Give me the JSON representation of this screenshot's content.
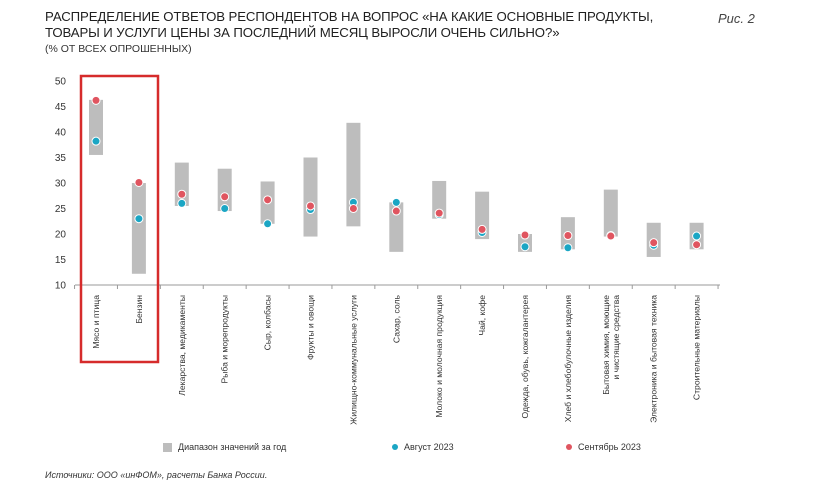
{
  "header": {
    "title": "РАСПРЕДЕЛЕНИЕ ОТВЕТОВ РЕСПОНДЕНТОВ НА ВОПРОС «НА КАКИЕ ОСНОВНЫЕ ПРОДУКТЫ, ТОВАРЫ И УСЛУГИ ЦЕНЫ ЗА ПОСЛЕДНИЙ МЕСЯЦ ВЫРОСЛИ ОЧЕНЬ СИЛЬНО?»",
    "subtitle": "(% ОТ ВСЕХ ОПРОШЕННЫХ)",
    "figure_label": "Рис. 2"
  },
  "source": "Источники: ООО «инФОМ», расчеты Банка России.",
  "colors": {
    "range": "#bdbdbd",
    "august": "#1ba6c4",
    "september": "#e05560",
    "highlight": "#d62b2b"
  },
  "chart_data": {
    "type": "range-dot",
    "title": "РАСПРЕДЕЛЕНИЕ ОТВЕТОВ РЕСПОНДЕНТОВ НА ВОПРОС «НА КАКИЕ ОСНОВНЫЕ ПРОДУКТЫ, ТОВАРЫ И УСЛУГИ ЦЕНЫ ЗА ПОСЛЕДНИЙ МЕСЯЦ ВЫРОСЛИ ОЧЕНЬ СИЛЬНО?»",
    "ylabel": "% от всех опрошенных",
    "ylim": [
      10,
      50
    ],
    "yticks": [
      10,
      15,
      20,
      25,
      30,
      35,
      40,
      45,
      50
    ],
    "categories": [
      "Мясо и птица",
      "Бензин",
      "Лекарства, медикаменты",
      "Рыба и морепродукты",
      "Сыр, колбасы",
      "Фрукты и овощи",
      "Жилищно-коммунальные услуги",
      "Сахар, соль",
      "Молоко и молочная продукция",
      "Чай, кофе",
      "Одежда, обувь, кожгалантерея",
      "Хлеб и хлебобулочные изделия",
      "Бытовая химия, моющие и чистящие средства",
      "Электроника и бытовая техника",
      "Строительные материалы"
    ],
    "range_min": [
      35.5,
      12.2,
      25.5,
      24.5,
      22.0,
      19.5,
      21.5,
      16.5,
      23.0,
      19.0,
      16.5,
      17.0,
      19.5,
      15.5,
      17.0
    ],
    "range_max": [
      46.3,
      30.0,
      34.0,
      32.8,
      30.3,
      35.0,
      41.8,
      26.2,
      30.4,
      28.3,
      20.0,
      23.3,
      28.7,
      22.2,
      22.2
    ],
    "series": [
      {
        "name": "Август 2023",
        "values": [
          38.2,
          23.0,
          26.0,
          25.0,
          22.0,
          24.8,
          26.2,
          26.2,
          23.8,
          20.3,
          17.5,
          17.3,
          19.7,
          17.8,
          19.6
        ]
      },
      {
        "name": "Сентябрь 2023",
        "values": [
          46.2,
          30.1,
          27.8,
          27.3,
          26.7,
          25.5,
          25.0,
          24.5,
          24.1,
          20.9,
          19.8,
          19.7,
          19.6,
          18.3,
          17.9
        ]
      }
    ],
    "legend": [
      "Диапазон значений за год",
      "Август 2023",
      "Сентябрь 2023"
    ],
    "legend_position": "bottom",
    "highlighted_categories": [
      "Мясо и птица",
      "Бензин"
    ],
    "grid": false
  }
}
